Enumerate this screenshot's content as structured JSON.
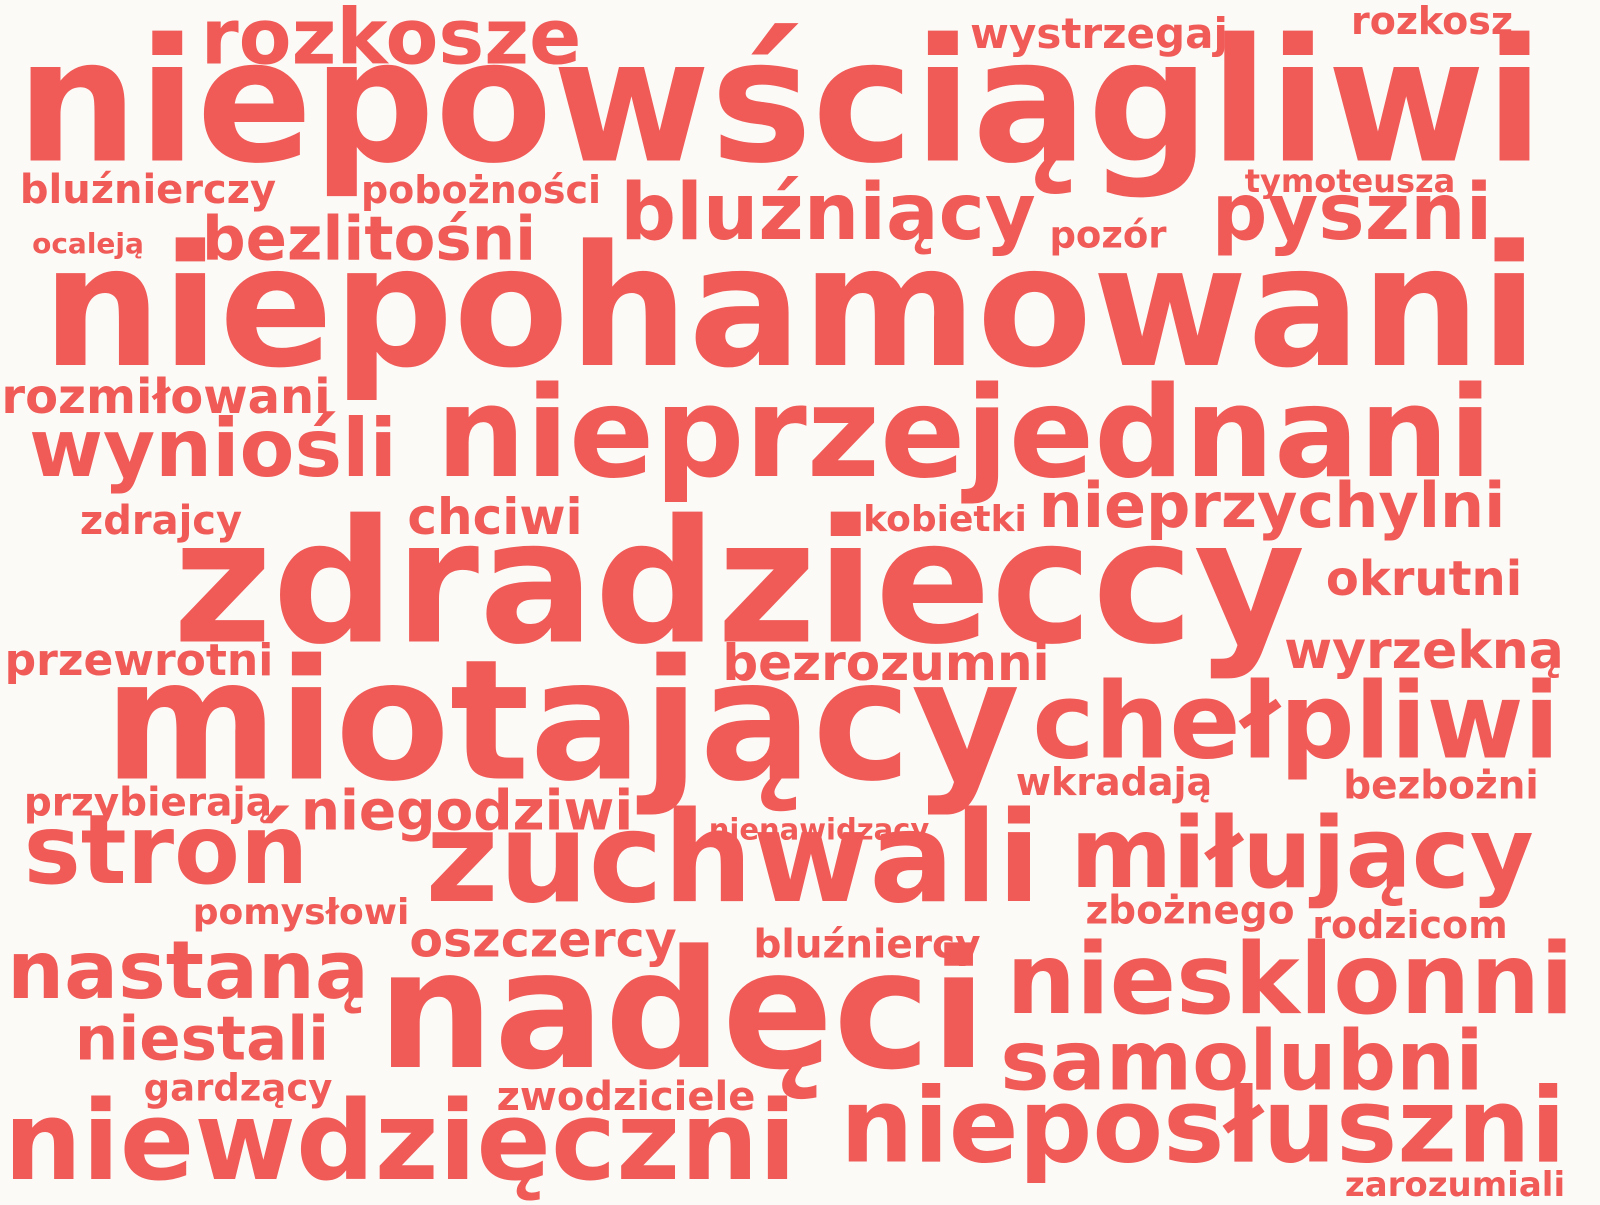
{
  "cloud": {
    "color": "#f05a57",
    "background": "#fbfaf7",
    "words": [
      "niepowściągliwi",
      "rozkosze",
      "wystrzegaj",
      "rozkosz",
      "bluźnierczy",
      "pobożności",
      "bluźniący",
      "pyszni",
      "tymoteusza",
      "ocaleją",
      "bezlitośni",
      "pozór",
      "niepohamowani",
      "rozmiłowani",
      "wyniośli",
      "nieprzejednani",
      "zdrajcy",
      "chciwi",
      "kobietki",
      "nieprzychylni",
      "zdradzieccy",
      "okrutni",
      "przewrotni",
      "bezrozumni",
      "wyrzekną",
      "miotający",
      "chełpliwi",
      "wkradają",
      "bezbożni",
      "przybierają",
      "niegodziwi",
      "nienawidzący",
      "stroń",
      "zuchwali",
      "miłujący",
      "pomysłowi",
      "zbożnego",
      "rodzicom",
      "nastaną",
      "oszczercy",
      "bluźniercy",
      "nadęci",
      "niesklonni",
      "niestali",
      "samolubni",
      "gardzący",
      "zwodziciele",
      "niewdzięczni",
      "nieposłuszni",
      "zarozumiali"
    ]
  }
}
